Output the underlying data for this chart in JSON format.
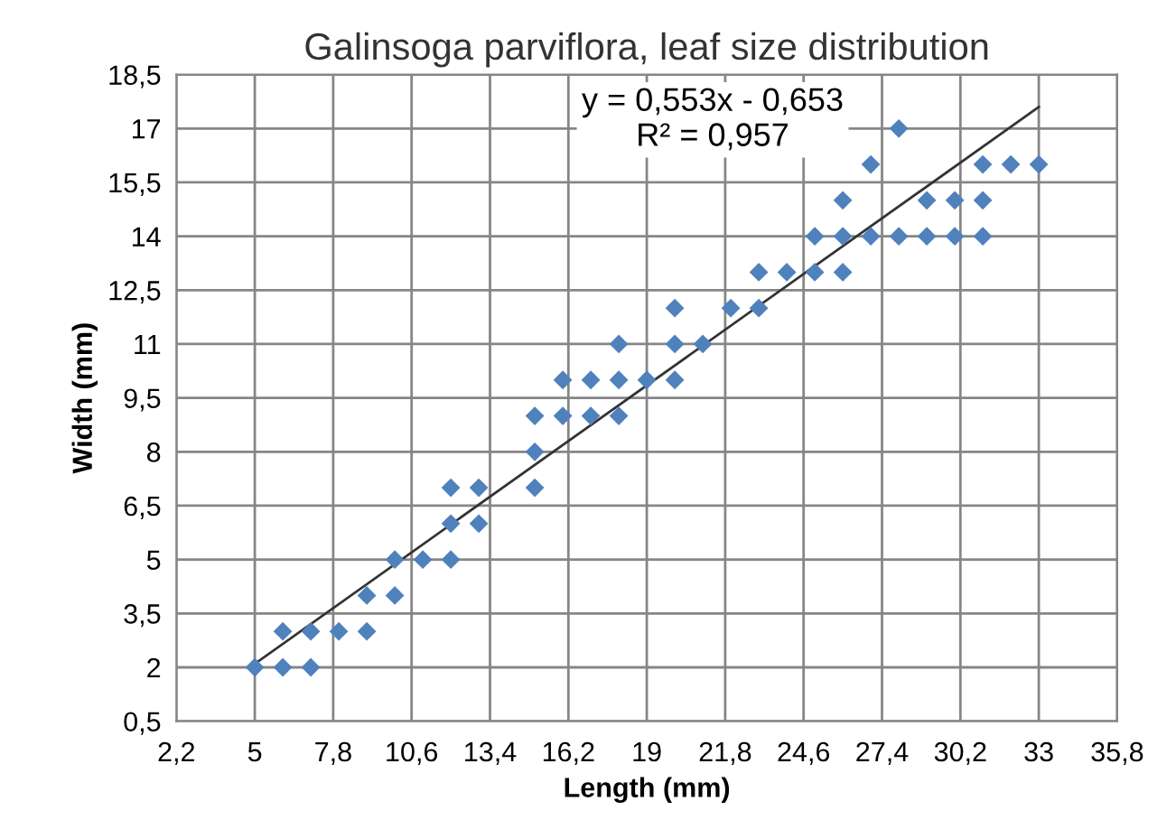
{
  "chart_data": {
    "type": "scatter",
    "title": "Galinsoga parviflora, leaf size distribution",
    "xlabel": "Length (mm)",
    "ylabel": "Width (mm)",
    "series": [
      {
        "color": "#4f81bd",
        "marker": "diamond",
        "x": [
          5,
          6,
          6,
          7,
          7,
          8,
          9,
          9,
          10,
          10,
          11,
          12,
          12,
          12,
          13,
          13,
          15,
          15,
          15,
          16,
          16,
          17,
          17,
          18,
          18,
          18,
          19,
          20,
          20,
          20,
          21,
          22,
          23,
          23,
          24,
          25,
          25,
          26,
          26,
          26,
          27,
          27,
          28,
          28,
          29,
          29,
          30,
          30,
          31,
          31,
          31,
          32,
          33
        ],
        "values": [
          2,
          2,
          3,
          2,
          3,
          3,
          3,
          4,
          4,
          5,
          5,
          5,
          6,
          7,
          6,
          7,
          7,
          8,
          9,
          9,
          10,
          9,
          10,
          9,
          10,
          11,
          10,
          10,
          11,
          12,
          11,
          12,
          12,
          13,
          13,
          13,
          14,
          13,
          14,
          15,
          14,
          16,
          17,
          14,
          14,
          15,
          14,
          15,
          14,
          15,
          16,
          16,
          16
        ]
      },
      {
        "type": "line",
        "color": "#333333",
        "marker": "none",
        "x": [
          5,
          33
        ],
        "values": [
          2.1,
          17.6
        ]
      }
    ],
    "annotations": [
      "y = 0,553x - 0,653",
      "R² = 0,957"
    ],
    "xlim": [
      2.2,
      35.8
    ],
    "ylim": [
      0.5,
      18.5
    ],
    "xticks": [
      {
        "value": 2.2,
        "label": "2,2"
      },
      5,
      {
        "value": 7.8,
        "label": "7,8"
      },
      {
        "value": 10.6,
        "label": "10,6"
      },
      {
        "value": 13.4,
        "label": "13,4"
      },
      {
        "value": 16.2,
        "label": "16,2"
      },
      19,
      {
        "value": 21.8,
        "label": "21,8"
      },
      {
        "value": 24.6,
        "label": "24,6"
      },
      {
        "value": 27.4,
        "label": "27,4"
      },
      {
        "value": 30.2,
        "label": "30,2"
      },
      33,
      {
        "value": 35.8,
        "label": "35,8"
      }
    ],
    "yticks": [
      {
        "value": 0.5,
        "label": "0,5"
      },
      2,
      {
        "value": 3.5,
        "label": "3,5"
      },
      5,
      {
        "value": 6.5,
        "label": "6,5"
      },
      8,
      {
        "value": 9.5,
        "label": "9,5"
      },
      11,
      {
        "value": 12.5,
        "label": "12,5"
      },
      14,
      {
        "value": 15.5,
        "label": "15,5"
      },
      17,
      {
        "value": 18.5,
        "label": "18,5"
      }
    ],
    "grid": true,
    "legend": false
  }
}
